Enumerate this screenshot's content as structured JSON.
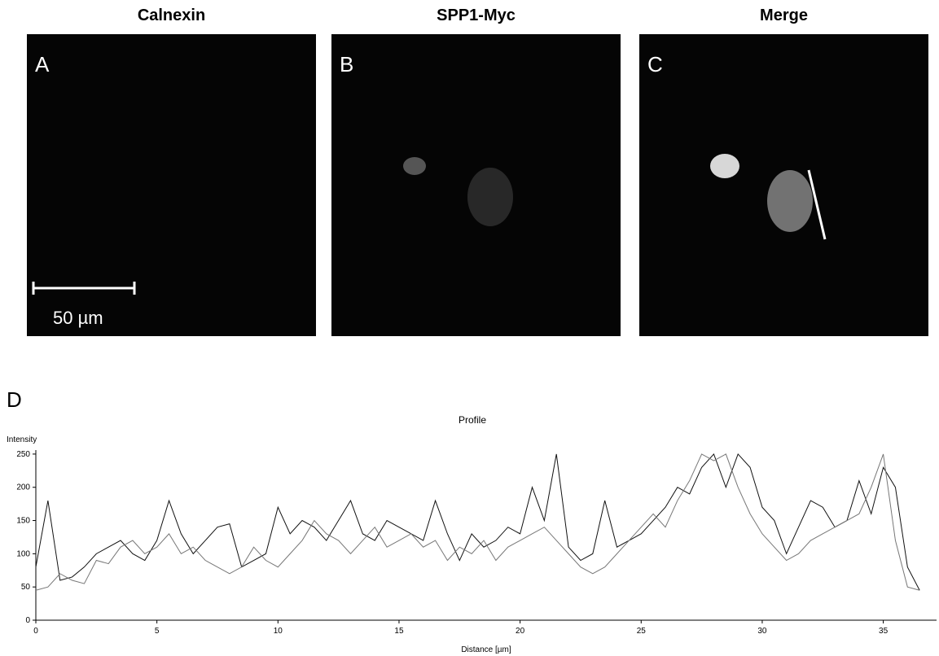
{
  "panels": [
    {
      "title": "Calnexin",
      "letter": "A"
    },
    {
      "title": "SPP1-Myc",
      "letter": "B"
    },
    {
      "title": "Merge",
      "letter": "C"
    }
  ],
  "scale_bar": "50 µm",
  "chart_data": {
    "type": "line",
    "panel_label": "D",
    "title": "Profile",
    "y_label": "Intensity",
    "x_label": "Distance [µm]",
    "x": [
      0,
      0.5,
      1,
      1.5,
      2,
      2.5,
      3,
      3.5,
      4,
      4.5,
      5,
      5.5,
      6,
      6.5,
      7,
      7.5,
      8,
      8.5,
      9,
      9.5,
      10,
      10.5,
      11,
      11.5,
      12,
      12.5,
      13,
      13.5,
      14,
      14.5,
      15,
      15.5,
      16,
      16.5,
      17,
      17.5,
      18,
      18.5,
      19,
      19.5,
      20,
      20.5,
      21,
      21.5,
      22,
      22.5,
      23,
      23.5,
      24,
      24.5,
      25,
      25.5,
      26,
      26.5,
      27,
      27.5,
      28,
      28.5,
      29,
      29.5,
      30,
      30.5,
      31,
      31.5,
      32,
      32.5,
      33,
      33.5,
      34,
      34.5,
      35,
      35.5,
      36,
      36.5
    ],
    "series": [
      {
        "color": "#111111",
        "values": [
          80,
          180,
          60,
          65,
          80,
          100,
          110,
          120,
          100,
          90,
          120,
          180,
          130,
          100,
          120,
          140,
          145,
          80,
          90,
          100,
          170,
          130,
          150,
          140,
          120,
          150,
          180,
          130,
          120,
          150,
          140,
          130,
          120,
          180,
          130,
          90,
          130,
          110,
          120,
          140,
          130,
          200,
          150,
          250,
          110,
          90,
          100,
          180,
          110,
          120,
          130,
          150,
          170,
          200,
          190,
          230,
          250,
          200,
          250,
          230,
          170,
          150,
          100,
          140,
          180,
          170,
          140,
          150,
          210,
          160,
          230,
          200,
          80,
          45
        ]
      },
      {
        "color": "#777777",
        "values": [
          45,
          50,
          70,
          60,
          55,
          90,
          85,
          110,
          120,
          100,
          110,
          130,
          100,
          110,
          90,
          80,
          70,
          80,
          110,
          90,
          80,
          100,
          120,
          150,
          130,
          120,
          100,
          120,
          140,
          110,
          120,
          130,
          110,
          120,
          90,
          110,
          100,
          120,
          90,
          110,
          120,
          130,
          140,
          120,
          100,
          80,
          70,
          80,
          100,
          120,
          140,
          160,
          140,
          180,
          210,
          250,
          240,
          250,
          200,
          160,
          130,
          110,
          90,
          100,
          120,
          130,
          140,
          150,
          160,
          200,
          250,
          120,
          50,
          45
        ]
      }
    ],
    "xlim": [
      0,
      37.2
    ],
    "ylim": [
      0,
      256
    ],
    "xticks": [
      0,
      5,
      10,
      15,
      20,
      25,
      30,
      35
    ],
    "yticks": [
      0,
      50,
      100,
      150,
      200,
      250
    ]
  }
}
